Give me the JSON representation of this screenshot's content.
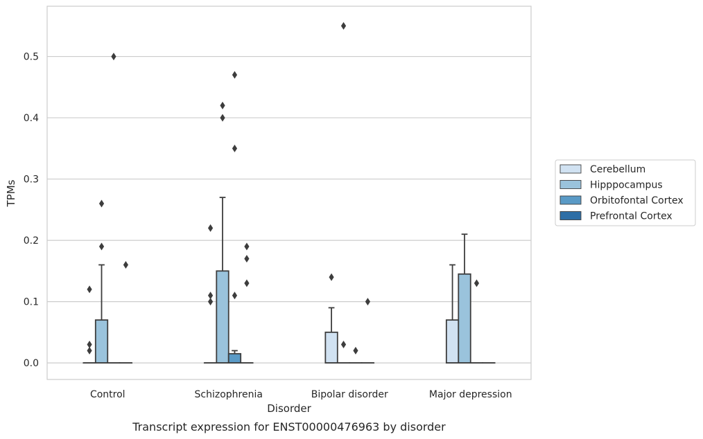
{
  "chart_data": {
    "type": "box",
    "caption": "Transcript expression for ENST00000476963 by disorder",
    "xlabel": "Disorder",
    "ylabel": "TPMs",
    "ylim": [
      -0.027,
      0.582
    ],
    "yticks": [
      0.0,
      0.1,
      0.2,
      0.3,
      0.4,
      0.5
    ],
    "ytick_labels": [
      "0.0",
      "0.1",
      "0.2",
      "0.3",
      "0.4",
      "0.5"
    ],
    "grid": "horizontal",
    "legend_position": "right",
    "categories": [
      "Control",
      "Schizophrenia",
      "Bipolar disorder",
      "Major depression"
    ],
    "series": [
      {
        "name": "Cerebellum",
        "color": "#d1e2f2",
        "boxes": [
          {
            "q1": 0,
            "median": 0,
            "q3": 0,
            "whisker_low": 0,
            "whisker_high": 0,
            "outliers": [
              0.12,
              0.03,
              0.02
            ]
          },
          {
            "q1": 0,
            "median": 0,
            "q3": 0,
            "whisker_low": 0,
            "whisker_high": 0,
            "outliers": [
              0.22,
              0.11,
              0.1
            ]
          },
          {
            "q1": 0,
            "median": 0,
            "q3": 0.05,
            "whisker_low": 0,
            "whisker_high": 0.09,
            "outliers": [
              0.14
            ]
          },
          {
            "q1": 0,
            "median": 0,
            "q3": 0.07,
            "whisker_low": 0,
            "whisker_high": 0.16,
            "outliers": []
          }
        ]
      },
      {
        "name": "Hipppocampus",
        "color": "#9ac3dc",
        "boxes": [
          {
            "q1": 0,
            "median": 0,
            "q3": 0.07,
            "whisker_low": 0,
            "whisker_high": 0.16,
            "outliers": [
              0.26,
              0.19
            ]
          },
          {
            "q1": 0,
            "median": 0,
            "q3": 0.15,
            "whisker_low": 0,
            "whisker_high": 0.27,
            "outliers": [
              0.42,
              0.4
            ]
          },
          {
            "q1": 0,
            "median": 0,
            "q3": 0,
            "whisker_low": 0,
            "whisker_high": 0,
            "outliers": [
              0.55,
              0.03
            ]
          },
          {
            "q1": 0,
            "median": 0,
            "q3": 0.145,
            "whisker_low": 0,
            "whisker_high": 0.21,
            "outliers": []
          }
        ]
      },
      {
        "name": "Orbitofontal Cortex",
        "color": "#5a9ac6",
        "boxes": [
          {
            "q1": 0,
            "median": 0,
            "q3": 0,
            "whisker_low": 0,
            "whisker_high": 0,
            "outliers": [
              0.5
            ]
          },
          {
            "q1": 0,
            "median": 0,
            "q3": 0.015,
            "whisker_low": 0,
            "whisker_high": 0.02,
            "outliers": [
              0.47,
              0.35,
              0.11
            ]
          },
          {
            "q1": 0,
            "median": 0,
            "q3": 0,
            "whisker_low": 0,
            "whisker_high": 0,
            "outliers": [
              0.02
            ]
          },
          {
            "q1": 0,
            "median": 0,
            "q3": 0,
            "whisker_low": 0,
            "whisker_high": 0,
            "outliers": [
              0.13
            ]
          }
        ]
      },
      {
        "name": "Prefrontal Cortex",
        "color": "#2d6ea6",
        "boxes": [
          {
            "q1": 0,
            "median": 0,
            "q3": 0,
            "whisker_low": 0,
            "whisker_high": 0,
            "outliers": [
              0.16
            ]
          },
          {
            "q1": 0,
            "median": 0,
            "q3": 0,
            "whisker_low": 0,
            "whisker_high": 0,
            "outliers": [
              0.19,
              0.17,
              0.13
            ]
          },
          {
            "q1": 0,
            "median": 0,
            "q3": 0,
            "whisker_low": 0,
            "whisker_high": 0,
            "outliers": [
              0.1
            ]
          },
          {
            "q1": 0,
            "median": 0,
            "q3": 0,
            "whisker_low": 0,
            "whisker_high": 0,
            "outliers": []
          }
        ]
      }
    ]
  }
}
